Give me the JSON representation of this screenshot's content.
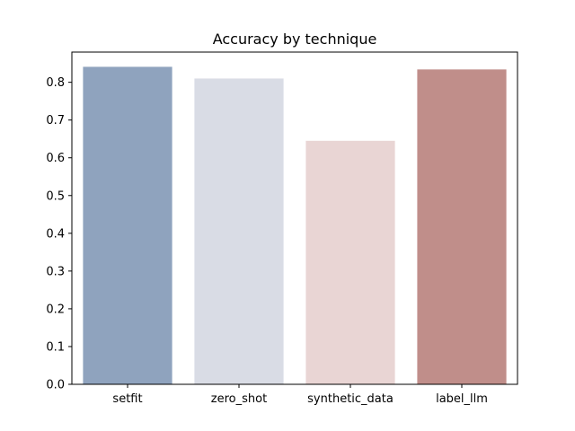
{
  "chart_data": {
    "type": "bar",
    "title": "Accuracy by technique",
    "xlabel": "",
    "ylabel": "",
    "categories": [
      "setfit",
      "zero_shot",
      "synthetic_data",
      "label_llm"
    ],
    "values": [
      0.841,
      0.81,
      0.645,
      0.834
    ],
    "colors": [
      "#8fa3be",
      "#d9dce5",
      "#e9d5d4",
      "#c08e8a"
    ],
    "ylim": [
      0,
      0.88
    ],
    "yticks": [
      0.0,
      0.1,
      0.2,
      0.3,
      0.4,
      0.5,
      0.6,
      0.7,
      0.8
    ],
    "ytick_labels": [
      "0.0",
      "0.1",
      "0.2",
      "0.3",
      "0.4",
      "0.5",
      "0.6",
      "0.7",
      "0.8"
    ],
    "grid": false,
    "legend": "none"
  }
}
